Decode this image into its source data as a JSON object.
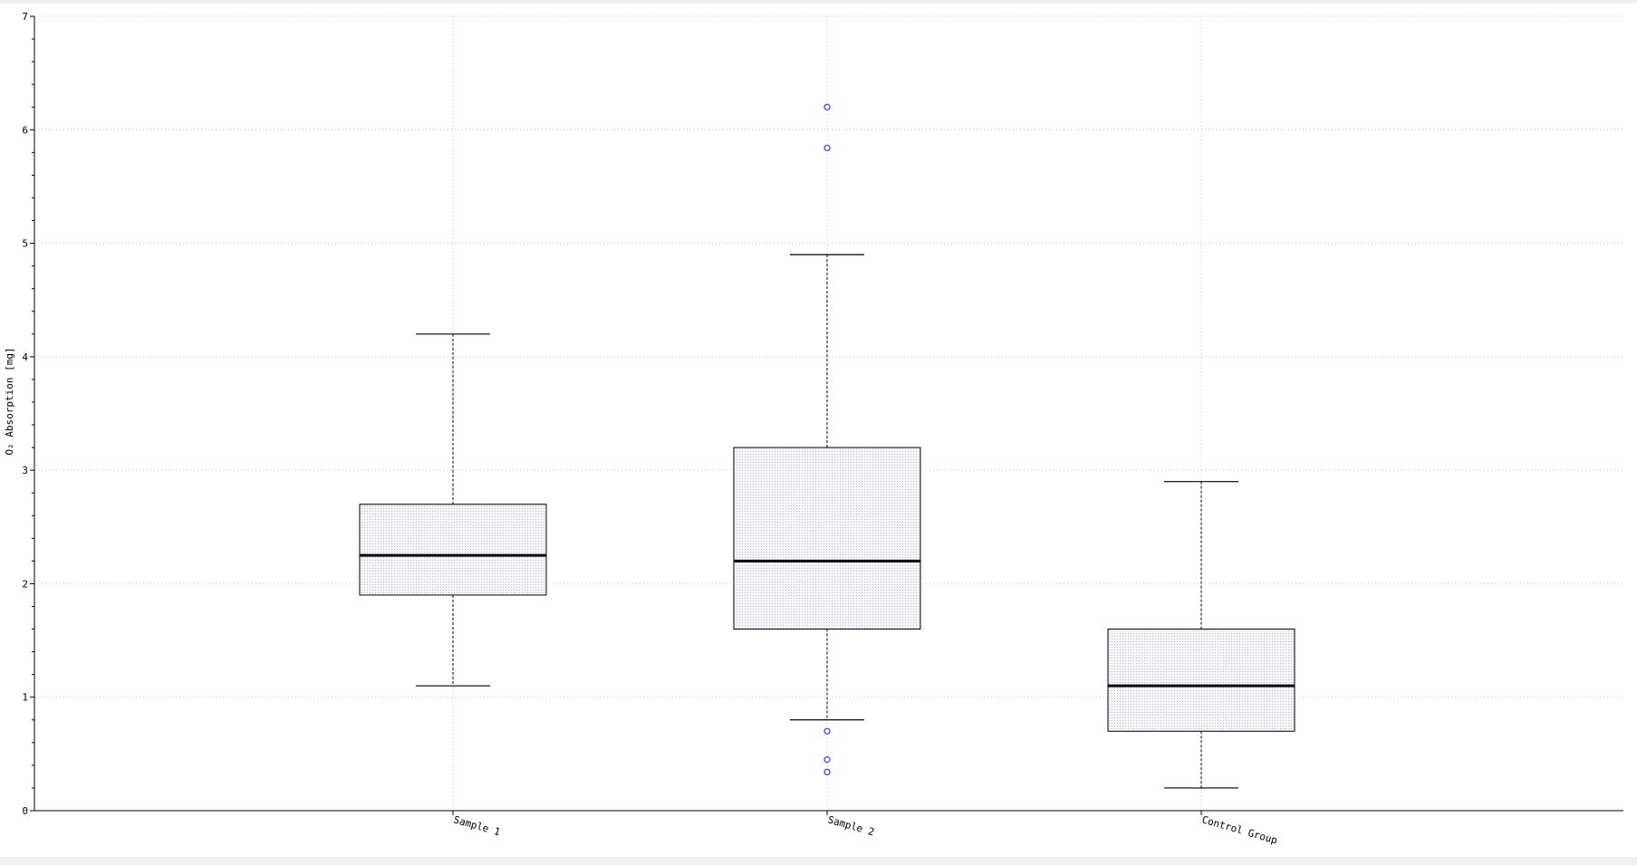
{
  "chart_data": {
    "type": "boxplot",
    "ylabel": "O₂ Absorption [mg]",
    "ylim": [
      0,
      7
    ],
    "yticks": [
      0,
      1,
      2,
      3,
      4,
      5,
      6,
      7
    ],
    "grid": true,
    "categories": [
      "Sample 1",
      "Sample 2",
      "Control Group"
    ],
    "boxes": [
      {
        "category": "Sample 1",
        "whisker_low": 1.1,
        "q1": 1.9,
        "median": 2.25,
        "q3": 2.7,
        "whisker_high": 4.2,
        "outliers": []
      },
      {
        "category": "Sample 2",
        "whisker_low": 0.8,
        "q1": 1.6,
        "median": 2.2,
        "q3": 3.2,
        "whisker_high": 4.9,
        "outliers": [
          6.2,
          5.84,
          0.7,
          0.45,
          0.34
        ]
      },
      {
        "category": "Control Group",
        "whisker_low": 0.2,
        "q1": 0.7,
        "median": 1.1,
        "q3": 1.6,
        "whisker_high": 2.9,
        "outliers": []
      }
    ],
    "colors": {
      "box_fill": "#ebebf5",
      "outlier": "#3a3ae0",
      "grid": "#c8c8c8"
    }
  }
}
